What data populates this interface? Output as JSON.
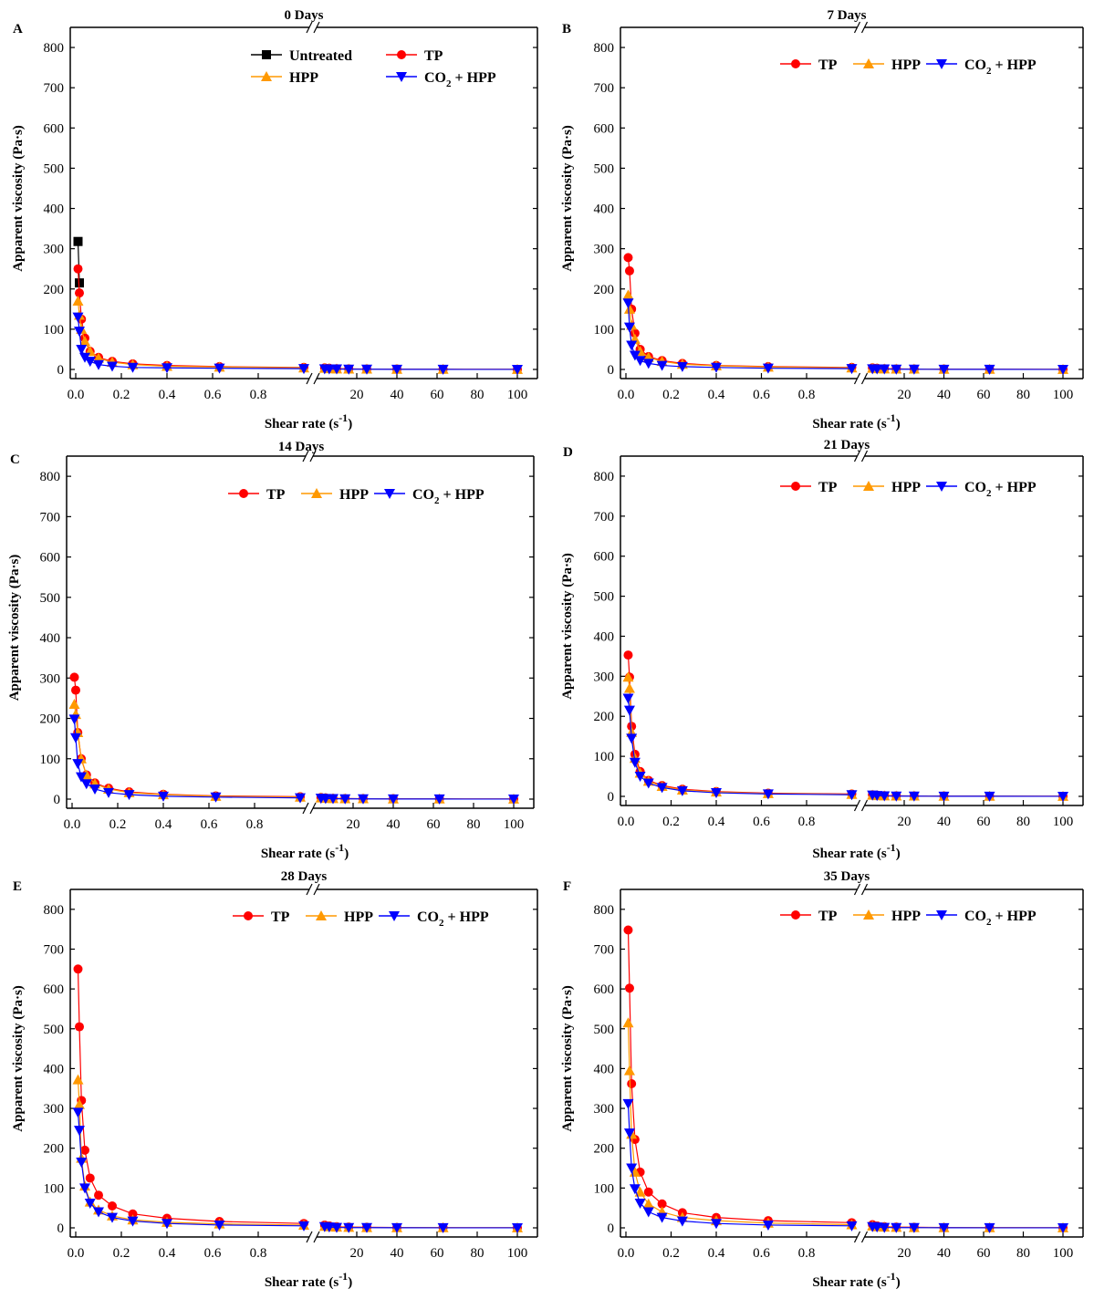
{
  "figure_title": "Apparent viscosity vs shear rate",
  "series_styles": {
    "Untreated": {
      "color": "#000000",
      "marker": "square"
    },
    "TP": {
      "color": "#ff0000",
      "marker": "circle"
    },
    "HPP": {
      "color": "#ff9900",
      "marker": "triangle-up"
    },
    "CO2 + HPP": {
      "color": "#0000ff",
      "marker": "triangle-down"
    }
  },
  "chart_data": [
    {
      "type": "line",
      "panel": "A",
      "title": "0 Days",
      "xlabel": "Shear rate (s",
      "xlabel_sup": "-1",
      "xlabel_end": ")",
      "ylabel": "Apparent viscosity (Pa·s)",
      "ylim": [
        0,
        850
      ],
      "yticks": [
        0,
        100,
        200,
        300,
        400,
        500,
        600,
        700,
        800
      ],
      "xticks_low": [
        "0.0",
        "0.2",
        "0.4",
        "0.6",
        "0.8"
      ],
      "xticks_high": [
        "20",
        "40",
        "60",
        "80",
        "100"
      ],
      "x_break": true,
      "legend_layout": "two-rows",
      "series": [
        {
          "name": "Untreated",
          "x": [
            0.01,
            0.016
          ],
          "values": [
            318,
            215
          ]
        },
        {
          "name": "TP",
          "x": [
            0.01,
            0.016,
            0.025,
            0.04,
            0.063,
            0.1,
            0.16,
            0.25,
            0.4,
            0.63,
            1,
            4,
            6.3,
            10,
            16,
            25,
            40,
            63,
            100
          ],
          "values": [
            250,
            190,
            125,
            78,
            45,
            30,
            20,
            14,
            10,
            7,
            5,
            4,
            3,
            2,
            1.5,
            1,
            1,
            0.5,
            0.3
          ]
        },
        {
          "name": "HPP",
          "x": [
            0.01,
            0.016,
            0.025,
            0.04,
            0.063,
            0.1,
            0.16,
            0.25,
            0.4,
            0.63,
            1,
            4,
            6.3,
            10,
            16,
            25,
            40,
            63,
            100
          ],
          "values": [
            170,
            135,
            100,
            70,
            45,
            28,
            18,
            12,
            8,
            6,
            4,
            3,
            2,
            1.5,
            1,
            1,
            0.5,
            0.5,
            0.3
          ]
        },
        {
          "name": "CO2 + HPP",
          "x": [
            0.01,
            0.016,
            0.025,
            0.04,
            0.063,
            0.1,
            0.16,
            0.25,
            0.4,
            0.63,
            1,
            4,
            6.3,
            10,
            16,
            25,
            40,
            63,
            100
          ],
          "values": [
            130,
            95,
            50,
            30,
            20,
            12,
            8,
            5,
            4,
            3,
            2,
            1.5,
            1,
            1,
            0.5,
            0.5,
            0.3,
            0.2,
            0.1
          ]
        }
      ]
    },
    {
      "type": "line",
      "panel": "B",
      "title": "7 Days",
      "xlabel": "Shear rate (s",
      "xlabel_sup": "-1",
      "xlabel_end": ")",
      "ylabel": "Apparent viscosity (Pa·s)",
      "ylim": [
        0,
        850
      ],
      "yticks": [
        0,
        100,
        200,
        300,
        400,
        500,
        600,
        700,
        800
      ],
      "xticks_low": [
        "0.0",
        "0.2",
        "0.4",
        "0.6",
        "0.8"
      ],
      "xticks_high": [
        "20",
        "40",
        "60",
        "80",
        "100"
      ],
      "x_break": true,
      "legend_layout": "one-row",
      "series": [
        {
          "name": "TP",
          "x": [
            0.01,
            0.016,
            0.025,
            0.04,
            0.063,
            0.1,
            0.16,
            0.25,
            0.4,
            0.63,
            1,
            4,
            6.3,
            10,
            16,
            25,
            40,
            63,
            100
          ],
          "values": [
            278,
            245,
            150,
            90,
            50,
            32,
            22,
            15,
            10,
            7,
            5,
            4,
            3,
            2,
            1.5,
            1,
            1,
            0.5,
            0.3
          ]
        },
        {
          "name": "HPP",
          "x": [
            0.01,
            0.016,
            0.025,
            0.04,
            0.063,
            0.1,
            0.16,
            0.25,
            0.4,
            0.63,
            1,
            4,
            6.3,
            10,
            16,
            25,
            40,
            63,
            100
          ],
          "values": [
            185,
            150,
            110,
            75,
            45,
            30,
            20,
            13,
            9,
            6,
            4,
            3,
            2,
            1.5,
            1,
            1,
            0.5,
            0.5,
            0.3
          ]
        },
        {
          "name": "CO2 + HPP",
          "x": [
            0.01,
            0.016,
            0.025,
            0.04,
            0.063,
            0.1,
            0.16,
            0.25,
            0.4,
            0.63,
            1,
            4,
            6.3,
            10,
            16,
            25,
            40,
            63,
            100
          ],
          "values": [
            165,
            105,
            60,
            35,
            22,
            15,
            10,
            7,
            5,
            3,
            2,
            1.5,
            1,
            1,
            0.5,
            0.5,
            0.3,
            0.2,
            0.1
          ]
        }
      ]
    },
    {
      "type": "line",
      "panel": "C",
      "title": "14 Days",
      "xlabel": "Shear rate (s",
      "xlabel_sup": "-1",
      "xlabel_end": ")",
      "ylabel": "Apparent viscosity (Pa·s)",
      "ylim": [
        0,
        850
      ],
      "yticks": [
        0,
        100,
        200,
        300,
        400,
        500,
        600,
        700,
        800
      ],
      "xticks_low": [
        "0.0",
        "0.2",
        "0.4",
        "0.6",
        "0.8"
      ],
      "xticks_high": [
        "20",
        "40",
        "60",
        "80",
        "100"
      ],
      "x_break": true,
      "legend_layout": "one-row",
      "series": [
        {
          "name": "TP",
          "x": [
            0.01,
            0.016,
            0.025,
            0.04,
            0.063,
            0.1,
            0.16,
            0.25,
            0.4,
            0.63,
            1,
            4,
            6.3,
            10,
            16,
            25,
            40,
            63,
            100
          ],
          "values": [
            302,
            270,
            165,
            100,
            60,
            40,
            27,
            18,
            12,
            8,
            6,
            4,
            3,
            2,
            1.5,
            1,
            1,
            0.5,
            0.3
          ]
        },
        {
          "name": "HPP",
          "x": [
            0.01,
            0.016,
            0.025,
            0.04,
            0.063,
            0.1,
            0.16,
            0.25,
            0.4,
            0.63,
            1,
            4,
            6.3,
            10,
            16,
            25,
            40,
            63,
            100
          ],
          "values": [
            235,
            210,
            165,
            100,
            60,
            38,
            25,
            16,
            11,
            7,
            5,
            3,
            2,
            1.5,
            1,
            1,
            0.5,
            0.5,
            0.3
          ]
        },
        {
          "name": "CO2 + HPP",
          "x": [
            0.01,
            0.016,
            0.025,
            0.04,
            0.063,
            0.1,
            0.16,
            0.25,
            0.4,
            0.63,
            1,
            4,
            6.3,
            10,
            16,
            25,
            40,
            63,
            100
          ],
          "values": [
            198,
            152,
            88,
            55,
            38,
            25,
            16,
            11,
            7,
            5,
            3,
            2,
            1.5,
            1,
            0.5,
            0.5,
            0.3,
            0.2,
            0.1
          ]
        }
      ]
    },
    {
      "type": "line",
      "panel": "D",
      "title": "21 Days",
      "xlabel": "Shear rate (s",
      "xlabel_sup": "-1",
      "xlabel_end": ")",
      "ylabel": "Apparent viscosity (Pa·s)",
      "ylim": [
        0,
        850
      ],
      "yticks": [
        0,
        100,
        200,
        300,
        400,
        500,
        600,
        700,
        800
      ],
      "xticks_low": [
        "0.0",
        "0.2",
        "0.4",
        "0.6",
        "0.8"
      ],
      "xticks_high": [
        "20",
        "40",
        "60",
        "80",
        "100"
      ],
      "x_break": true,
      "legend_layout": "one-row",
      "series": [
        {
          "name": "TP",
          "x": [
            0.01,
            0.016,
            0.025,
            0.04,
            0.063,
            0.1,
            0.16,
            0.25,
            0.4,
            0.63,
            1,
            4,
            6.3,
            10,
            16,
            25,
            40,
            63,
            100
          ],
          "values": [
            353,
            298,
            175,
            105,
            62,
            40,
            27,
            18,
            12,
            8,
            6,
            4,
            3,
            2,
            1.5,
            1,
            1,
            0.5,
            0.3
          ]
        },
        {
          "name": "HPP",
          "x": [
            0.01,
            0.016,
            0.025,
            0.04,
            0.063,
            0.1,
            0.16,
            0.25,
            0.4,
            0.63,
            1,
            4,
            6.3,
            10,
            16,
            25,
            40,
            63,
            100
          ],
          "values": [
            298,
            270,
            160,
            95,
            58,
            38,
            25,
            16,
            11,
            7,
            5,
            3,
            2,
            1.5,
            1,
            1,
            0.5,
            0.5,
            0.3
          ]
        },
        {
          "name": "CO2 + HPP",
          "x": [
            0.01,
            0.016,
            0.025,
            0.04,
            0.063,
            0.1,
            0.16,
            0.25,
            0.4,
            0.63,
            1,
            4,
            6.3,
            10,
            16,
            25,
            40,
            63,
            100
          ],
          "values": [
            245,
            215,
            145,
            85,
            50,
            33,
            22,
            14,
            9,
            6,
            4,
            3,
            2,
            1,
            0.5,
            0.5,
            0.3,
            0.2,
            0.1
          ]
        }
      ]
    },
    {
      "type": "line",
      "panel": "E",
      "title": "28 Days",
      "xlabel": "Shear rate (s",
      "xlabel_sup": "-1",
      "xlabel_end": ")",
      "ylabel": "Apparent viscosity (Pa·s)",
      "ylim": [
        0,
        850
      ],
      "yticks": [
        0,
        100,
        200,
        300,
        400,
        500,
        600,
        700,
        800
      ],
      "xticks_low": [
        "0.0",
        "0.2",
        "0.4",
        "0.6",
        "0.8"
      ],
      "xticks_high": [
        "20",
        "40",
        "60",
        "80",
        "100"
      ],
      "x_break": true,
      "legend_layout": "one-row",
      "series": [
        {
          "name": "TP",
          "x": [
            0.01,
            0.016,
            0.025,
            0.04,
            0.063,
            0.1,
            0.16,
            0.25,
            0.4,
            0.63,
            1,
            4,
            6.3,
            10,
            16,
            25,
            40,
            63,
            100
          ],
          "values": [
            650,
            505,
            320,
            195,
            125,
            82,
            55,
            35,
            24,
            16,
            11,
            7,
            5,
            3,
            2,
            1.5,
            1,
            0.5,
            0.3
          ]
        },
        {
          "name": "HPP",
          "x": [
            0.01,
            0.016,
            0.025,
            0.04,
            0.063,
            0.1,
            0.16,
            0.25,
            0.4,
            0.63,
            1,
            4,
            6.3,
            10,
            16,
            25,
            40,
            63,
            100
          ],
          "values": [
            372,
            310,
            175,
            105,
            65,
            45,
            30,
            20,
            14,
            10,
            7,
            4,
            3,
            2,
            1.5,
            1,
            0.5,
            0.5,
            0.3
          ]
        },
        {
          "name": "CO2 + HPP",
          "x": [
            0.01,
            0.016,
            0.025,
            0.04,
            0.063,
            0.1,
            0.16,
            0.25,
            0.4,
            0.63,
            1,
            4,
            6.3,
            10,
            16,
            25,
            40,
            63,
            100
          ],
          "values": [
            290,
            245,
            165,
            100,
            62,
            40,
            26,
            17,
            11,
            7,
            5,
            3,
            2,
            1,
            0.5,
            0.5,
            0.3,
            0.2,
            0.1
          ]
        }
      ]
    },
    {
      "type": "line",
      "panel": "F",
      "title": "35 Days",
      "xlabel": "Shear rate (s",
      "xlabel_sup": "-1",
      "xlabel_end": ")",
      "ylabel": "Apparent viscosity (Pa·s)",
      "ylim": [
        0,
        850
      ],
      "yticks": [
        0,
        100,
        200,
        300,
        400,
        500,
        600,
        700,
        800
      ],
      "xticks_low": [
        "0.0",
        "0.2",
        "0.4",
        "0.6",
        "0.8"
      ],
      "xticks_high": [
        "20",
        "40",
        "60",
        "80",
        "100"
      ],
      "x_break": true,
      "legend_layout": "one-row",
      "series": [
        {
          "name": "TP",
          "x": [
            0.01,
            0.016,
            0.025,
            0.04,
            0.063,
            0.1,
            0.16,
            0.25,
            0.4,
            0.63,
            1,
            4,
            6.3,
            10,
            16,
            25,
            40,
            63,
            100
          ],
          "values": [
            748,
            602,
            362,
            222,
            140,
            90,
            60,
            38,
            26,
            18,
            13,
            8,
            5,
            3,
            2,
            1.5,
            1,
            0.5,
            0.3
          ]
        },
        {
          "name": "HPP",
          "x": [
            0.01,
            0.016,
            0.025,
            0.04,
            0.063,
            0.1,
            0.16,
            0.25,
            0.4,
            0.63,
            1,
            4,
            6.3,
            10,
            16,
            25,
            40,
            63,
            100
          ],
          "values": [
            515,
            395,
            235,
            140,
            90,
            60,
            40,
            26,
            18,
            12,
            8,
            5,
            3,
            2,
            1.5,
            1,
            0.5,
            0.5,
            0.3
          ]
        },
        {
          "name": "CO2 + HPP",
          "x": [
            0.01,
            0.016,
            0.025,
            0.04,
            0.063,
            0.1,
            0.16,
            0.25,
            0.4,
            0.63,
            1,
            4,
            6.3,
            10,
            16,
            25,
            40,
            63,
            100
          ],
          "values": [
            312,
            238,
            150,
            98,
            62,
            40,
            26,
            17,
            11,
            7,
            5,
            3,
            2,
            1,
            0.5,
            0.5,
            0.3,
            0.2,
            0.1
          ]
        }
      ]
    }
  ]
}
